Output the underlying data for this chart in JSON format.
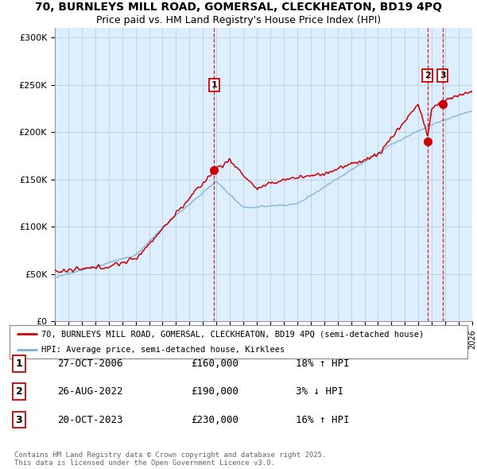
{
  "title_line1": "70, BURNLEYS MILL ROAD, GOMERSAL, CLECKHEATON, BD19 4PQ",
  "title_line2": "Price paid vs. HM Land Registry's House Price Index (HPI)",
  "ylabel_ticks": [
    "£0",
    "£50K",
    "£100K",
    "£150K",
    "£200K",
    "£250K",
    "£300K"
  ],
  "ytick_values": [
    0,
    50000,
    100000,
    150000,
    200000,
    250000,
    300000
  ],
  "ylim": [
    0,
    310000
  ],
  "xlim_start": 1995,
  "xlim_end": 2026,
  "red_color": "#cc0000",
  "blue_color": "#7aafd4",
  "dashed_red_color": "#cc0000",
  "grid_color": "#b8cfe0",
  "plot_bg_color": "#ddeeff",
  "background_color": "#ffffff",
  "legend_label_red": "70, BURNLEYS MILL ROAD, GOMERSAL, CLECKHEATON, BD19 4PQ (semi-detached house)",
  "legend_label_blue": "HPI: Average price, semi-detached house, Kirklees",
  "transaction_dates": [
    2006.83,
    2022.67,
    2023.8
  ],
  "transaction_prices": [
    160000,
    190000,
    230000
  ],
  "transaction_labels": [
    "1",
    "2",
    "3"
  ],
  "transaction_info": [
    {
      "num": "1",
      "date": "27-OCT-2006",
      "price": "£160,000",
      "hpi": "18% ↑ HPI"
    },
    {
      "num": "2",
      "date": "26-AUG-2022",
      "price": "£190,000",
      "hpi": "3% ↓ HPI"
    },
    {
      "num": "3",
      "date": "20-OCT-2023",
      "price": "£230,000",
      "hpi": "16% ↑ HPI"
    }
  ],
  "footer_text": "Contains HM Land Registry data © Crown copyright and database right 2025.\nThis data is licensed under the Open Government Licence v3.0.",
  "title_fontsize": 10,
  "axis_fontsize": 8
}
